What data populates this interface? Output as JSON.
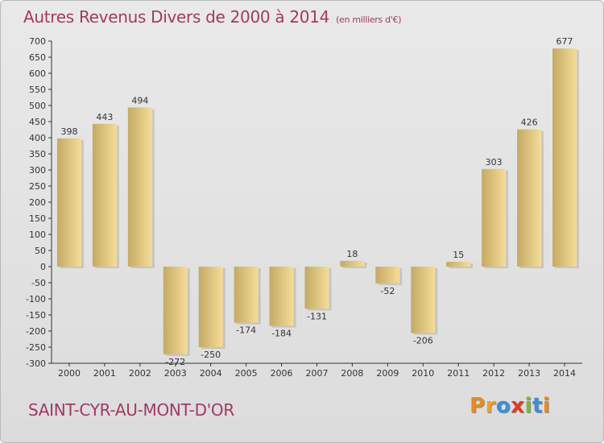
{
  "header": {
    "title": "Autres Revenus Divers de 2000 à 2014",
    "unit": "(en milliers d'€)"
  },
  "footer": {
    "town": "SAINT-CYR-AU-MONT-D'OR",
    "logo": "Proxiti"
  },
  "colors": {
    "title": "#a03a63",
    "bar_light": "#f5dd9a",
    "bar_dark": "#c4aa62",
    "logo_letters": [
      "#e98a1c",
      "#f0a02a",
      "#3c8fd6",
      "#e23a2a",
      "#7ab83a",
      "#3c8fd6",
      "#e98a1c"
    ]
  },
  "chart_data": {
    "type": "bar",
    "categories": [
      "2000",
      "2001",
      "2002",
      "2003",
      "2004",
      "2005",
      "2006",
      "2007",
      "2008",
      "2009",
      "2010",
      "2011",
      "2012",
      "2013",
      "2014"
    ],
    "values": [
      398,
      443,
      494,
      -272,
      -250,
      -174,
      -184,
      -131,
      18,
      -52,
      -206,
      15,
      303,
      426,
      677
    ],
    "data_labels": [
      "398",
      "443",
      "494",
      "-272",
      "-250",
      "-174",
      "-184",
      "-131",
      "18",
      "-52",
      "-206",
      "15",
      "303",
      "426",
      "677"
    ],
    "title": "Autres Revenus Divers de 2000 à 2014",
    "xlabel": "",
    "ylabel": "",
    "ylim": [
      -300,
      700
    ],
    "yticks": [
      700,
      650,
      600,
      550,
      500,
      450,
      400,
      350,
      300,
      250,
      200,
      150,
      100,
      50,
      0,
      -50,
      -100,
      -150,
      -200,
      -250,
      -300
    ],
    "grid": false
  }
}
